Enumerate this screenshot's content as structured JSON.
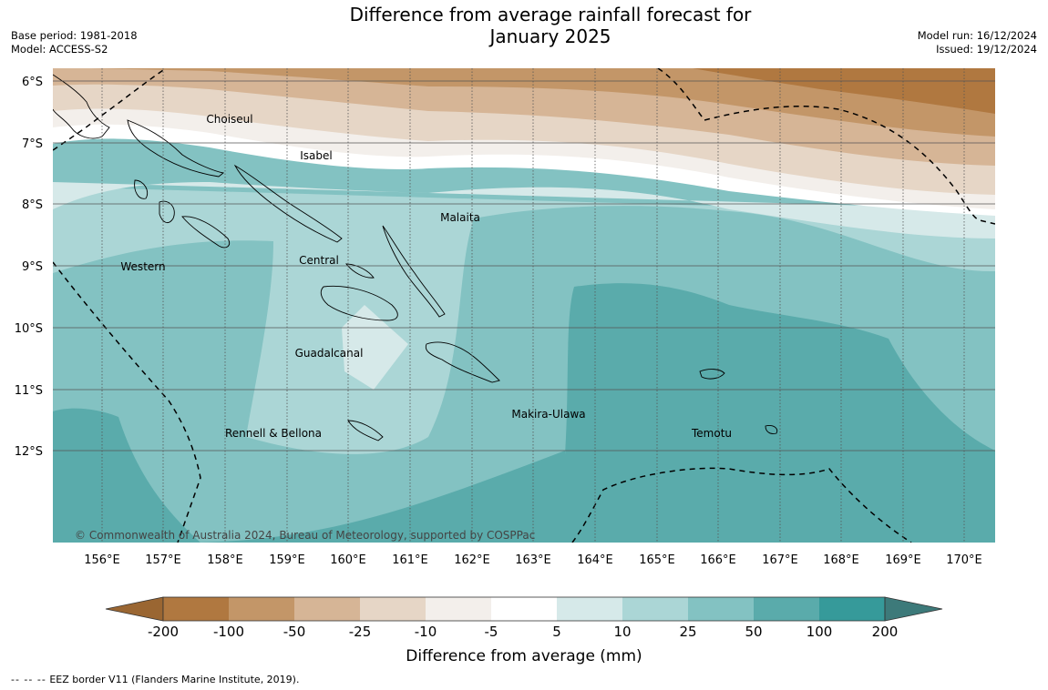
{
  "title": {
    "line1": "Difference from average rainfall forecast for",
    "line2": "January 2025"
  },
  "header_left": {
    "base_period": "Base period: 1981-2018",
    "model": "Model: ACCESS-S2"
  },
  "header_right": {
    "model_run": "Model run: 16/12/2024",
    "issued": "Issued: 19/12/2024"
  },
  "map": {
    "lat_labels": [
      "6°S",
      "7°S",
      "8°S",
      "9°S",
      "10°S",
      "11°S",
      "12°S"
    ],
    "lon_labels": [
      "156°E",
      "157°E",
      "158°E",
      "159°E",
      "160°E",
      "161°E",
      "162°E",
      "163°E",
      "164°E",
      "165°E",
      "166°E",
      "167°E",
      "168°E",
      "169°E",
      "170°E"
    ],
    "place_labels": [
      "Choiseul",
      "Isabel",
      "Malaita",
      "Central",
      "Western",
      "Guadalcanal",
      "Rennell & Bellona",
      "Makira-Ulawa",
      "Temotu"
    ],
    "copyright": "© Commonwealth of Australia 2024, Bureau of Meteorology, supported by COSPPac"
  },
  "colorbar": {
    "tick_labels": [
      "-200",
      "-100",
      "-50",
      "-25",
      "-10",
      "-5",
      "5",
      "10",
      "25",
      "50",
      "100",
      "200"
    ],
    "colors": [
      "#9a6632",
      "#b07840",
      "#c39668",
      "#d6b596",
      "#e6d6c6",
      "#f3efeb",
      "#ffffff",
      "#d6e9e9",
      "#abd6d6",
      "#83c2c2",
      "#5aabab",
      "#369a9a",
      "#3d7a7a"
    ],
    "label": "Difference from average (mm)"
  },
  "footer": {
    "legend_symbol": "-- -- --",
    "legend_text": "EEZ border V11 (Flanders Marine Institute, 2019)."
  }
}
